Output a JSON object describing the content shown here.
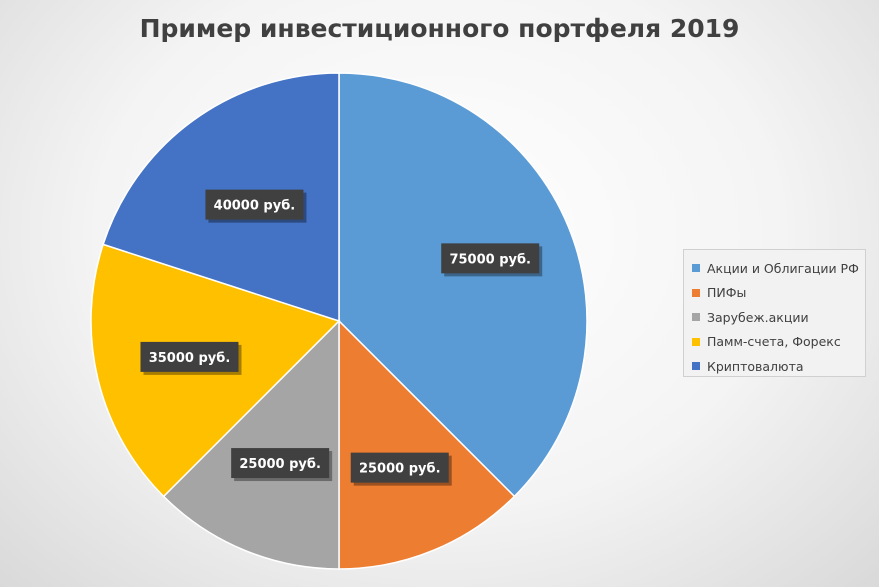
{
  "chart_data": {
    "type": "pie",
    "title": "Пример инвестиционного портфеля 2019",
    "categories": [
      "Акции и Облигации РФ",
      "ПИФы",
      "Зарубеж.акции",
      "Памм-счета, Форекс",
      "Криптовалюта"
    ],
    "values": [
      75000,
      25000,
      25000,
      35000,
      40000
    ],
    "data_labels": [
      "75000 руб.",
      "25000 руб.",
      "25000 руб.",
      "35000 руб.",
      "40000 руб."
    ],
    "colors": [
      "#5b9bd5",
      "#ed7d31",
      "#a5a5a5",
      "#ffc000",
      "#4472c4"
    ],
    "legend_position": "right",
    "start_angle": "12 o'clock, clockwise"
  }
}
